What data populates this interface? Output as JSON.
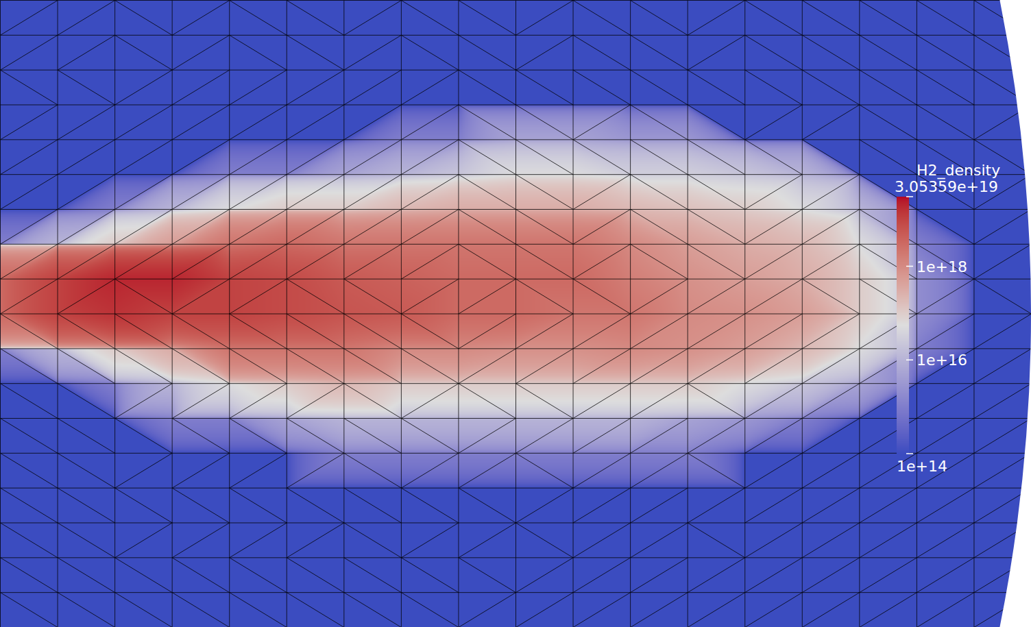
{
  "chart_data": {
    "type": "heatmap",
    "tick_labels": false,
    "grid": false,
    "colorbar": {
      "label": "H2_density",
      "log": true,
      "range": [
        100000000000000.0,
        3.05359e+19
      ],
      "ticks": [
        {
          "value": 3.05359e+19,
          "label": "3.05359e+19"
        },
        {
          "value": 1e+18,
          "label": "1e+18"
        },
        {
          "value": 1e+16,
          "label": "1e+16"
        },
        {
          "value": 100000000000000.0,
          "label": "1e+14"
        }
      ]
    },
    "cells": [
      [
        100000000000000.0,
        100000000000000.0,
        100000000000000.0,
        100000000000000.0,
        100000000000000.0,
        100000000000000.0,
        100000000000000.0,
        100000000000000.0,
        100000000000000.0,
        100000000000000.0,
        100000000000000.0,
        100000000000000.0,
        100000000000000.0,
        100000000000000.0,
        100000000000000.0,
        100000000000000.0,
        100000000000000.0,
        100000000000000.0,
        100000000000000.0
      ],
      [
        100000000000000.0,
        100000000000000.0,
        100000000000000.0,
        100000000000000.0,
        100000000000000.0,
        100000000000000.0,
        100000000000000.0,
        100000000000000.0,
        100000000000000.0,
        100000000000000.0,
        100000000000000.0,
        100000000000000.0,
        100000000000000.0,
        100000000000000.0,
        100000000000000.0,
        100000000000000.0,
        100000000000000.0,
        100000000000000.0,
        100000000000000.0
      ],
      [
        100000000000000.0,
        100000000000000.0,
        100000000000000.0,
        100000000000000.0,
        100000000000000.0,
        100000000000000.0,
        100000000000000.0,
        100000000000000.0,
        100000000000000.0,
        100000000000000.0,
        100000000000000.0,
        100000000000000.0,
        100000000000000.0,
        100000000000000.0,
        100000000000000.0,
        100000000000000.0,
        100000000000000.0,
        100000000000000.0,
        100000000000000.0
      ],
      [
        100000000000000.0,
        100000000000000.0,
        100000000000000.0,
        100000000000000.0,
        100000000000000.0,
        100000000000000.0,
        100000000000000.0,
        100000000000000.0,
        100000000000000.0,
        100000000000000.0,
        100000000000000.0,
        100000000000000.0,
        100000000000000.0,
        100000000000000.0,
        100000000000000.0,
        100000000000000.0,
        100000000000000.0,
        100000000000000.0,
        100000000000000.0
      ],
      [
        100000000000000.0,
        100000000000000.0,
        100000000000000.0,
        100000000000000.0,
        100000000000000.0,
        100000000000000.0,
        100000000000000.0,
        1000000000000000.0,
        1000000000000000.0,
        5000000000000000.0,
        5000000000000000.0,
        3000000000000000.0,
        3000000000000000.0,
        100000000000000.0,
        100000000000000.0,
        100000000000000.0,
        100000000000000.0,
        100000000000000.0,
        100000000000000.0
      ],
      [
        100000000000000.0,
        100000000000000.0,
        100000000000000.0,
        100000000000000.0,
        1000000000000000.0,
        1000000000000000.0,
        5000000000000000.0,
        1e+16,
        2e+16,
        5e+16,
        5e+16,
        3e+16,
        3e+16,
        2e+16,
        1e+16,
        100000000000000.0,
        100000000000000.0,
        100000000000000.0,
        100000000000000.0
      ],
      [
        100000000000000.0,
        100000000000000.0,
        1000000000000000.0,
        1e+16,
        5e+16,
        1e+17,
        1e+17,
        2e+17,
        3e+17,
        3e+17,
        3e+17,
        2e+17,
        1.5e+17,
        1e+17,
        5e+16,
        1e+16,
        100000000000000.0,
        100000000000000.0,
        100000000000000.0
      ],
      [
        1000000000000000.0,
        1e+16,
        1e+17,
        5e+17,
        2e+18,
        3e+18,
        2e+18,
        2e+18,
        2e+18,
        2e+18,
        2e+18,
        1e+18,
        5e+17,
        3e+17,
        2e+17,
        5e+16,
        1000000000000000.0,
        100000000000000.0,
        100000000000000.0
      ],
      [
        3e+18,
        1e+19,
        2e+19,
        2e+19,
        1e+19,
        8e+18,
        5e+18,
        4e+18,
        3e+18,
        3e+18,
        3e+18,
        1.5e+18,
        8e+17,
        5e+17,
        3e+17,
        1e+17,
        2000000000000000.0,
        100000000000000.0,
        100000000000000.0
      ],
      [
        3e+18,
        1e+19,
        1.5e+19,
        1e+19,
        1e+19,
        8e+18,
        6e+18,
        5e+18,
        3e+18,
        3e+18,
        2e+18,
        2e+18,
        1e+18,
        8e+17,
        5e+17,
        1e+17,
        2000000000000000.0,
        100000000000000.0,
        100000000000000.0
      ],
      [
        1000000000000000.0,
        1e+16,
        1e+17,
        3e+17,
        2e+18,
        2e+18,
        2e+18,
        1e+18,
        1e+18,
        8e+17,
        8e+17,
        1e+18,
        8e+17,
        5e+17,
        2e+17,
        5e+16,
        1000000000000000.0,
        100000000000000.0,
        100000000000000.0
      ],
      [
        100000000000000.0,
        100000000000000.0,
        1000000000000000.0,
        1e+16,
        5e+16,
        1e+17,
        2e+17,
        1e+17,
        1e+17,
        1e+17,
        1e+17,
        1e+17,
        1e+17,
        5e+16,
        2e+16,
        5000000000000000.0,
        100000000000000.0,
        100000000000000.0,
        100000000000000.0
      ],
      [
        100000000000000.0,
        100000000000000.0,
        100000000000000.0,
        1000000000000000.0,
        1000000000000000.0,
        5000000000000000.0,
        1e+16,
        1e+16,
        1e+16,
        1e+16,
        1e+16,
        1e+16,
        5000000000000000.0,
        3000000000000000.0,
        1000000000000000.0,
        100000000000000.0,
        100000000000000.0,
        100000000000000.0,
        100000000000000.0
      ],
      [
        100000000000000.0,
        100000000000000.0,
        100000000000000.0,
        100000000000000.0,
        100000000000000.0,
        100000000000000.0,
        1000000000000000.0,
        1000000000000000.0,
        1000000000000000.0,
        1000000000000000.0,
        1000000000000000.0,
        1000000000000000.0,
        1000000000000000.0,
        100000000000000.0,
        100000000000000.0,
        100000000000000.0,
        100000000000000.0,
        100000000000000.0,
        100000000000000.0
      ],
      [
        100000000000000.0,
        100000000000000.0,
        100000000000000.0,
        100000000000000.0,
        100000000000000.0,
        100000000000000.0,
        100000000000000.0,
        100000000000000.0,
        100000000000000.0,
        100000000000000.0,
        100000000000000.0,
        100000000000000.0,
        100000000000000.0,
        100000000000000.0,
        100000000000000.0,
        100000000000000.0,
        100000000000000.0,
        100000000000000.0,
        100000000000000.0
      ],
      [
        100000000000000.0,
        100000000000000.0,
        100000000000000.0,
        100000000000000.0,
        100000000000000.0,
        100000000000000.0,
        100000000000000.0,
        100000000000000.0,
        100000000000000.0,
        100000000000000.0,
        100000000000000.0,
        100000000000000.0,
        100000000000000.0,
        100000000000000.0,
        100000000000000.0,
        100000000000000.0,
        100000000000000.0,
        100000000000000.0,
        100000000000000.0
      ],
      [
        100000000000000.0,
        100000000000000.0,
        100000000000000.0,
        100000000000000.0,
        100000000000000.0,
        100000000000000.0,
        100000000000000.0,
        100000000000000.0,
        100000000000000.0,
        100000000000000.0,
        100000000000000.0,
        100000000000000.0,
        100000000000000.0,
        100000000000000.0,
        100000000000000.0,
        100000000000000.0,
        100000000000000.0,
        100000000000000.0,
        100000000000000.0
      ],
      [
        100000000000000.0,
        100000000000000.0,
        100000000000000.0,
        100000000000000.0,
        100000000000000.0,
        100000000000000.0,
        100000000000000.0,
        100000000000000.0,
        100000000000000.0,
        100000000000000.0,
        100000000000000.0,
        100000000000000.0,
        100000000000000.0,
        100000000000000.0,
        100000000000000.0,
        100000000000000.0,
        100000000000000.0,
        100000000000000.0,
        100000000000000.0
      ],
      [
        100000000000000.0,
        100000000000000.0,
        100000000000000.0,
        100000000000000.0,
        100000000000000.0,
        100000000000000.0,
        100000000000000.0,
        100000000000000.0,
        100000000000000.0,
        100000000000000.0,
        100000000000000.0,
        100000000000000.0,
        100000000000000.0,
        100000000000000.0,
        100000000000000.0,
        100000000000000.0,
        100000000000000.0,
        100000000000000.0,
        100000000000000.0
      ]
    ]
  }
}
